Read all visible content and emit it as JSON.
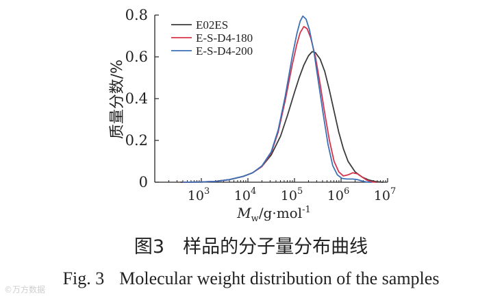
{
  "chart_data": {
    "type": "line",
    "xscale": "log",
    "xlim_log10": [
      2.0,
      7.0
    ],
    "ylim": [
      0,
      0.8
    ],
    "y_ticks": [
      "0",
      "0.2",
      "0.4",
      "0.6",
      "0.8"
    ],
    "x_ticks": [
      {
        "exp": 3,
        "label": "10",
        "sup": "3"
      },
      {
        "exp": 4,
        "label": "10",
        "sup": "4"
      },
      {
        "exp": 5,
        "label": "10",
        "sup": "5"
      },
      {
        "exp": 6,
        "label": "10",
        "sup": "6"
      },
      {
        "exp": 7,
        "label": "10",
        "sup": "7"
      }
    ],
    "ylabel": "质量分数/%",
    "xlabel": {
      "main": "M",
      "sub": "w",
      "rest": "/g·mol",
      "sup": "-1"
    },
    "legend_position": "top-left",
    "series": [
      {
        "name": "E02ES",
        "color": "#3a3a3a",
        "points": [
          [
            2.55,
            0
          ],
          [
            3.0,
            0.001
          ],
          [
            3.3,
            0.004
          ],
          [
            3.6,
            0.012
          ],
          [
            3.9,
            0.028
          ],
          [
            4.1,
            0.045
          ],
          [
            4.3,
            0.075
          ],
          [
            4.5,
            0.13
          ],
          [
            4.7,
            0.22
          ],
          [
            4.85,
            0.32
          ],
          [
            5.0,
            0.43
          ],
          [
            5.1,
            0.5
          ],
          [
            5.2,
            0.56
          ],
          [
            5.3,
            0.605
          ],
          [
            5.38,
            0.625
          ],
          [
            5.45,
            0.62
          ],
          [
            5.55,
            0.59
          ],
          [
            5.65,
            0.53
          ],
          [
            5.75,
            0.44
          ],
          [
            5.85,
            0.34
          ],
          [
            5.95,
            0.24
          ],
          [
            6.05,
            0.16
          ],
          [
            6.15,
            0.1
          ],
          [
            6.3,
            0.05
          ],
          [
            6.45,
            0.025
          ],
          [
            6.6,
            0.01
          ],
          [
            6.75,
            0.003
          ],
          [
            6.9,
            0.0
          ]
        ]
      },
      {
        "name": "E-S-D4-180",
        "color": "#d6334a",
        "points": [
          [
            2.6,
            0
          ],
          [
            3.0,
            0.001
          ],
          [
            3.3,
            0.004
          ],
          [
            3.6,
            0.012
          ],
          [
            3.9,
            0.028
          ],
          [
            4.1,
            0.045
          ],
          [
            4.3,
            0.075
          ],
          [
            4.5,
            0.14
          ],
          [
            4.65,
            0.24
          ],
          [
            4.8,
            0.39
          ],
          [
            4.95,
            0.56
          ],
          [
            5.05,
            0.66
          ],
          [
            5.12,
            0.715
          ],
          [
            5.2,
            0.745
          ],
          [
            5.27,
            0.735
          ],
          [
            5.35,
            0.69
          ],
          [
            5.45,
            0.6
          ],
          [
            5.55,
            0.47
          ],
          [
            5.65,
            0.33
          ],
          [
            5.75,
            0.2
          ],
          [
            5.85,
            0.1
          ],
          [
            5.95,
            0.05
          ],
          [
            6.05,
            0.03
          ],
          [
            6.15,
            0.035
          ],
          [
            6.25,
            0.045
          ],
          [
            6.35,
            0.04
          ],
          [
            6.45,
            0.025
          ],
          [
            6.55,
            0.01
          ],
          [
            6.65,
            0.002
          ],
          [
            6.75,
            0.0
          ]
        ]
      },
      {
        "name": "E-S-D4-200",
        "color": "#3b6fb6",
        "points": [
          [
            2.6,
            0
          ],
          [
            3.0,
            0.001
          ],
          [
            3.3,
            0.004
          ],
          [
            3.6,
            0.012
          ],
          [
            3.9,
            0.028
          ],
          [
            4.1,
            0.045
          ],
          [
            4.3,
            0.078
          ],
          [
            4.5,
            0.145
          ],
          [
            4.65,
            0.25
          ],
          [
            4.8,
            0.41
          ],
          [
            4.95,
            0.6
          ],
          [
            5.05,
            0.71
          ],
          [
            5.12,
            0.77
          ],
          [
            5.18,
            0.795
          ],
          [
            5.25,
            0.78
          ],
          [
            5.32,
            0.73
          ],
          [
            5.42,
            0.62
          ],
          [
            5.52,
            0.47
          ],
          [
            5.62,
            0.32
          ],
          [
            5.72,
            0.18
          ],
          [
            5.82,
            0.08
          ],
          [
            5.92,
            0.035
          ],
          [
            6.02,
            0.018
          ],
          [
            6.12,
            0.015
          ],
          [
            6.25,
            0.015
          ],
          [
            6.35,
            0.012
          ],
          [
            6.45,
            0.006
          ],
          [
            6.55,
            0.001
          ],
          [
            6.65,
            0.0
          ]
        ]
      }
    ]
  },
  "caption": {
    "cn": "图3　样品的分子量分布曲线",
    "en_fig": "Fig. 3",
    "en_title": "Molecular weight distribution of the samples"
  },
  "watermark": "©万方数据"
}
